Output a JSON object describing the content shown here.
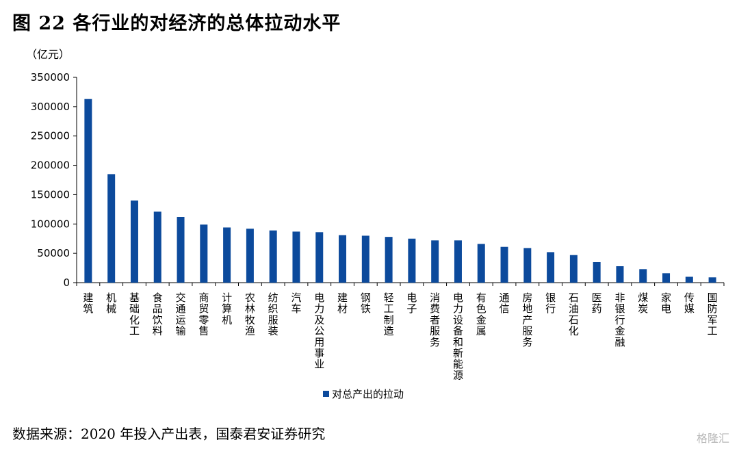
{
  "header": {
    "title": "图 22 各行业的对经济的总体拉动水平",
    "unit": "（亿元）"
  },
  "footer": {
    "source": "数据来源：2020 年投入产出表，国泰君安证券研究",
    "watermark": "格隆汇"
  },
  "chart_data": {
    "type": "bar",
    "title": "",
    "xlabel": "",
    "ylabel": "（亿元）",
    "ylim": [
      0,
      350000
    ],
    "yticks": [
      0,
      50000,
      100000,
      150000,
      200000,
      250000,
      300000,
      350000
    ],
    "grid": false,
    "legend_position": "bottom-center",
    "bar_color": "#0c4a9c",
    "categories": [
      "建筑",
      "机械",
      "基础化工",
      "食品饮料",
      "交通运输",
      "商贸零售",
      "计算机",
      "农林牧渔",
      "纺织服装",
      "汽车",
      "电力及公用事业",
      "建材",
      "钢铁",
      "轻工制造",
      "电子",
      "消费者服务",
      "电力设备和新能源",
      "有色金属",
      "通信",
      "房地产服务",
      "银行",
      "石油石化",
      "医药",
      "非银行金融",
      "煤炭",
      "家电",
      "传媒",
      "国防军工"
    ],
    "series": [
      {
        "name": "对总产出的拉动",
        "values": [
          313000,
          185000,
          140000,
          121000,
          112000,
          99000,
          94000,
          92000,
          89000,
          87000,
          86000,
          81000,
          80000,
          78000,
          75000,
          72000,
          72000,
          66000,
          61000,
          59000,
          52000,
          47000,
          35000,
          28000,
          23000,
          16000,
          10000,
          9000
        ]
      }
    ]
  }
}
